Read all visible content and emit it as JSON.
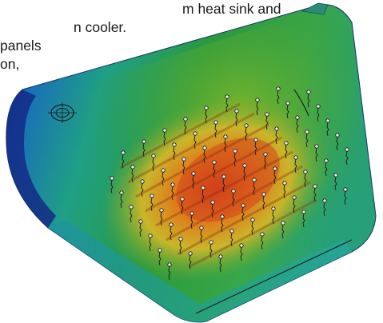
{
  "caption_lines": [
    "m heat sink and",
    "n cooler.",
    "panels",
    "on,"
  ],
  "render": {
    "subject": "heat-sink-thermal-simulation",
    "colors": {
      "hot": "#d23a1a",
      "warm": "#e28a1c",
      "mid": "#b9bd26",
      "green": "#2a9a3c",
      "teal": "#1f9f86",
      "cool": "#1a6fb8",
      "cold": "#1b2f9a"
    }
  }
}
